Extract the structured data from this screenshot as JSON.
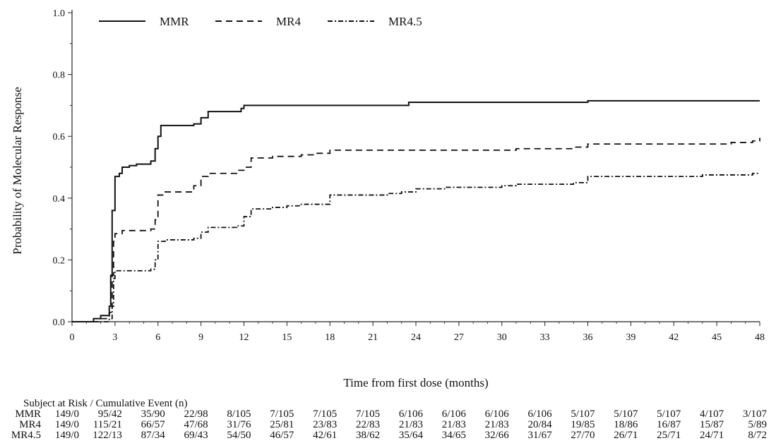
{
  "chart_data": {
    "type": "line",
    "title": "",
    "xlabel": "Time from first dose (months)",
    "ylabel": "Probability of Molecular Response",
    "xlim": [
      0,
      48
    ],
    "ylim": [
      0,
      1.0
    ],
    "xticks": [
      0,
      3,
      6,
      9,
      12,
      15,
      18,
      21,
      24,
      27,
      30,
      33,
      36,
      39,
      42,
      45,
      48
    ],
    "xtick_labels": [
      "0",
      "3",
      "6",
      "9",
      "12",
      "15",
      "18",
      "21",
      "24",
      "27",
      "30",
      "33",
      "36",
      "39",
      "42",
      "45",
      "48"
    ],
    "yticks": [
      0.0,
      0.2,
      0.4,
      0.6,
      0.8,
      1.0
    ],
    "ytick_labels": [
      "0.0",
      "0.2",
      "0.4",
      "0.6",
      "0.8",
      "1.0"
    ],
    "grid": false,
    "legend_position": "top-left",
    "series": [
      {
        "name": "MMR",
        "style": "solid",
        "points": [
          [
            0,
            0
          ],
          [
            1,
            0
          ],
          [
            1.5,
            0.01
          ],
          [
            2,
            0.02
          ],
          [
            2.5,
            0.02
          ],
          [
            2.6,
            0.05
          ],
          [
            2.7,
            0.15
          ],
          [
            2.8,
            0.36
          ],
          [
            3.0,
            0.47
          ],
          [
            3.3,
            0.48
          ],
          [
            3.5,
            0.5
          ],
          [
            4,
            0.505
          ],
          [
            4.5,
            0.51
          ],
          [
            5,
            0.51
          ],
          [
            5.5,
            0.52
          ],
          [
            5.8,
            0.56
          ],
          [
            6,
            0.6
          ],
          [
            6.2,
            0.635
          ],
          [
            7,
            0.635
          ],
          [
            8,
            0.635
          ],
          [
            8.5,
            0.64
          ],
          [
            9,
            0.66
          ],
          [
            9.5,
            0.68
          ],
          [
            10,
            0.68
          ],
          [
            11,
            0.68
          ],
          [
            11.8,
            0.69
          ],
          [
            12,
            0.7
          ],
          [
            14,
            0.7
          ],
          [
            18,
            0.7
          ],
          [
            23,
            0.7
          ],
          [
            23.5,
            0.71
          ],
          [
            30,
            0.71
          ],
          [
            35.8,
            0.71
          ],
          [
            36,
            0.715
          ],
          [
            42,
            0.715
          ],
          [
            48,
            0.715
          ]
        ]
      },
      {
        "name": "MR4",
        "style": "dashed",
        "points": [
          [
            0,
            0
          ],
          [
            1.5,
            0
          ],
          [
            2,
            0.01
          ],
          [
            2.6,
            0.03
          ],
          [
            2.8,
            0.15
          ],
          [
            2.9,
            0.26
          ],
          [
            3.0,
            0.285
          ],
          [
            3.5,
            0.295
          ],
          [
            5,
            0.295
          ],
          [
            5.5,
            0.3
          ],
          [
            5.8,
            0.33
          ],
          [
            6,
            0.41
          ],
          [
            6.5,
            0.42
          ],
          [
            7,
            0.42
          ],
          [
            8,
            0.42
          ],
          [
            8.5,
            0.44
          ],
          [
            9,
            0.47
          ],
          [
            9.5,
            0.48
          ],
          [
            11,
            0.48
          ],
          [
            11.5,
            0.49
          ],
          [
            12,
            0.5
          ],
          [
            12.5,
            0.53
          ],
          [
            14,
            0.535
          ],
          [
            15,
            0.535
          ],
          [
            16,
            0.54
          ],
          [
            17,
            0.545
          ],
          [
            18,
            0.555
          ],
          [
            21,
            0.555
          ],
          [
            24,
            0.555
          ],
          [
            27,
            0.555
          ],
          [
            30,
            0.555
          ],
          [
            31,
            0.56
          ],
          [
            33,
            0.56
          ],
          [
            35,
            0.565
          ],
          [
            36,
            0.575
          ],
          [
            42,
            0.575
          ],
          [
            45,
            0.575
          ],
          [
            46,
            0.58
          ],
          [
            47.5,
            0.585
          ],
          [
            48,
            0.595
          ]
        ]
      },
      {
        "name": "MR4.5",
        "style": "dash-dot",
        "points": [
          [
            0,
            0
          ],
          [
            2,
            0
          ],
          [
            2.6,
            0.01
          ],
          [
            2.8,
            0.05
          ],
          [
            2.9,
            0.14
          ],
          [
            3.0,
            0.165
          ],
          [
            3.5,
            0.165
          ],
          [
            5,
            0.165
          ],
          [
            5.5,
            0.17
          ],
          [
            5.8,
            0.2
          ],
          [
            6,
            0.26
          ],
          [
            6.5,
            0.265
          ],
          [
            8,
            0.265
          ],
          [
            8.5,
            0.27
          ],
          [
            9,
            0.29
          ],
          [
            9.5,
            0.305
          ],
          [
            11,
            0.305
          ],
          [
            11.5,
            0.31
          ],
          [
            12,
            0.34
          ],
          [
            12.5,
            0.365
          ],
          [
            14,
            0.37
          ],
          [
            15,
            0.375
          ],
          [
            16,
            0.38
          ],
          [
            17,
            0.38
          ],
          [
            18,
            0.41
          ],
          [
            21,
            0.41
          ],
          [
            22,
            0.415
          ],
          [
            23,
            0.42
          ],
          [
            24,
            0.43
          ],
          [
            26,
            0.435
          ],
          [
            28,
            0.435
          ],
          [
            30,
            0.44
          ],
          [
            31,
            0.445
          ],
          [
            33,
            0.445
          ],
          [
            35,
            0.45
          ],
          [
            36,
            0.47
          ],
          [
            40,
            0.47
          ],
          [
            44,
            0.475
          ],
          [
            47,
            0.475
          ],
          [
            47.5,
            0.48
          ],
          [
            48,
            0.48
          ]
        ]
      }
    ]
  },
  "risk_table": {
    "header": "Subject at Risk / Cumulative Event (n)",
    "rows": [
      {
        "name": "MMR",
        "values": [
          "149/0",
          "95/42",
          "35/90",
          "22/98",
          "8/105",
          "7/105",
          "7/105",
          "7/105",
          "6/106",
          "6/106",
          "6/106",
          "6/106",
          "5/107",
          "5/107",
          "5/107",
          "4/107",
          "3/107"
        ]
      },
      {
        "name": "MR4",
        "values": [
          "149/0",
          "115/21",
          "66/57",
          "47/68",
          "31/76",
          "25/81",
          "23/83",
          "22/83",
          "21/83",
          "21/83",
          "21/83",
          "20/84",
          "19/85",
          "18/86",
          "16/87",
          "15/87",
          "5/89"
        ]
      },
      {
        "name": "MR4.5",
        "values": [
          "149/0",
          "122/13",
          "87/34",
          "69/43",
          "54/50",
          "46/57",
          "42/61",
          "38/62",
          "35/64",
          "34/65",
          "32/66",
          "31/67",
          "27/70",
          "26/71",
          "25/71",
          "24/71",
          "8/72"
        ]
      }
    ]
  }
}
